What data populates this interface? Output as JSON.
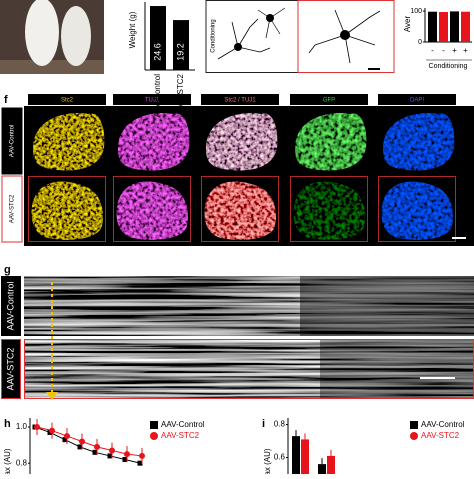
{
  "panel_weight": {
    "ylabel": "Weight (g)",
    "categories": [
      "AAV-Control",
      "AAV-STC2"
    ],
    "values": [
      24.6,
      19.2
    ]
  },
  "panel_neurons": {
    "label": "Conditioning"
  },
  "panel_avg": {
    "ylabel": "Aver",
    "ylim": [
      0,
      110
    ],
    "yticks": [
      0,
      100
    ],
    "values": [
      98,
      97,
      99,
      98
    ],
    "colors": [
      "#000000",
      "#e8141b",
      "#000000",
      "#e8141b"
    ],
    "signs": [
      "-",
      "-",
      "+",
      "+"
    ],
    "xlabel": "Conditioning"
  },
  "panel_f": {
    "letter": "f",
    "columns": [
      "Stc2",
      "TUJ1",
      "Stc2 / TUJ1",
      "GFP",
      "DAPI"
    ],
    "rows": [
      "AAV-Control",
      "AAV-STC2"
    ]
  },
  "panel_g": {
    "letter": "g",
    "rows": [
      "AAV-Control",
      "AAV-STC2"
    ]
  },
  "panel_h": {
    "letter": "h",
    "ylabel": "ax (AU)",
    "ylim": [
      0.74,
      1.05
    ],
    "yticks": [
      {
        "value": 1.0,
        "label": "1.0"
      },
      {
        "value": 0.8,
        "label": "0.8"
      }
    ],
    "series": [
      {
        "name": "AAV-Control",
        "color": "#000000",
        "values": [
          1.0,
          0.97,
          0.93,
          0.89,
          0.86,
          0.84,
          0.82,
          0.8
        ]
      },
      {
        "name": "AAV-STC2",
        "color": "#e8141b",
        "values": [
          1.0,
          0.98,
          0.95,
          0.92,
          0.89,
          0.87,
          0.85,
          0.84
        ]
      }
    ]
  },
  "panel_i": {
    "letter": "i",
    "ylabel": "ax (AU)",
    "ylim": [
      0.5,
      0.84
    ],
    "yticks": [
      {
        "value": 0.8,
        "label": "0.8"
      },
      {
        "value": 0.6,
        "label": "0.6"
      }
    ],
    "series": [
      {
        "name": "AAV-Control",
        "color": "#000000",
        "values": [
          0.73,
          0.56
        ]
      },
      {
        "name": "AAV-STC2",
        "color": "#e8141b",
        "values": [
          0.71,
          0.61
        ]
      }
    ]
  }
}
